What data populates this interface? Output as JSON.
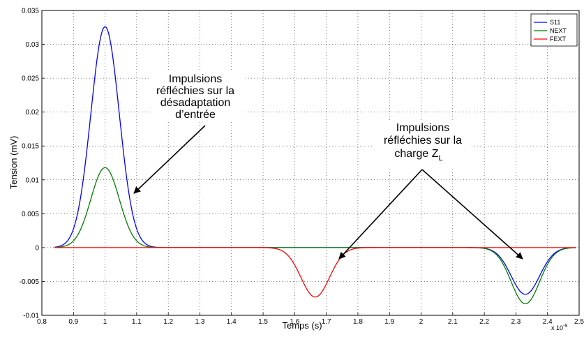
{
  "chart_data": {
    "type": "line",
    "xlabel": "Temps (s)",
    "ylabel": "Tension (mV)",
    "x_multiplier": "x 10",
    "x_multiplier_exp": "-9",
    "xlim": [
      0.8,
      2.5
    ],
    "ylim": [
      -0.01,
      0.035
    ],
    "grid": true,
    "legend_position": "top-right",
    "xticks": [
      "0.8",
      "0.9",
      "1",
      "1.1",
      "1.2",
      "1.3",
      "1.4",
      "1.5",
      "1.6",
      "1.7",
      "1.8",
      "1.9",
      "2",
      "2.1",
      "2.2",
      "2.3",
      "2.4",
      "2.5"
    ],
    "yticks": [
      "-0.01",
      "-0.005",
      "0",
      "0.005",
      "0.01",
      "0.015",
      "0.02",
      "0.025",
      "0.03",
      "0.035"
    ],
    "series": [
      {
        "name": "S11",
        "color": "#0000ff",
        "pulses": [
          {
            "center": 1.0,
            "amplitude": 0.0326,
            "sigma": 0.045
          },
          {
            "center": 2.33,
            "amplitude": -0.0069,
            "sigma": 0.045
          }
        ]
      },
      {
        "name": "NEXT",
        "color": "#008000",
        "pulses": [
          {
            "center": 1.0,
            "amplitude": 0.0118,
            "sigma": 0.045
          },
          {
            "center": 2.33,
            "amplitude": -0.0083,
            "sigma": 0.045
          }
        ]
      },
      {
        "name": "FEXT",
        "color": "#ff0000",
        "pulses": [
          {
            "center": 1.665,
            "amplitude": -0.0073,
            "sigma": 0.045
          }
        ]
      }
    ],
    "annotations": [
      {
        "lines": [
          "Impulsions",
          "réfléchies sur la",
          "désadaptation",
          "d’entrée"
        ]
      },
      {
        "lines": [
          "Impulsions",
          "réfléchies sur la",
          "charge Z"
        ],
        "subscript": "L"
      }
    ]
  }
}
